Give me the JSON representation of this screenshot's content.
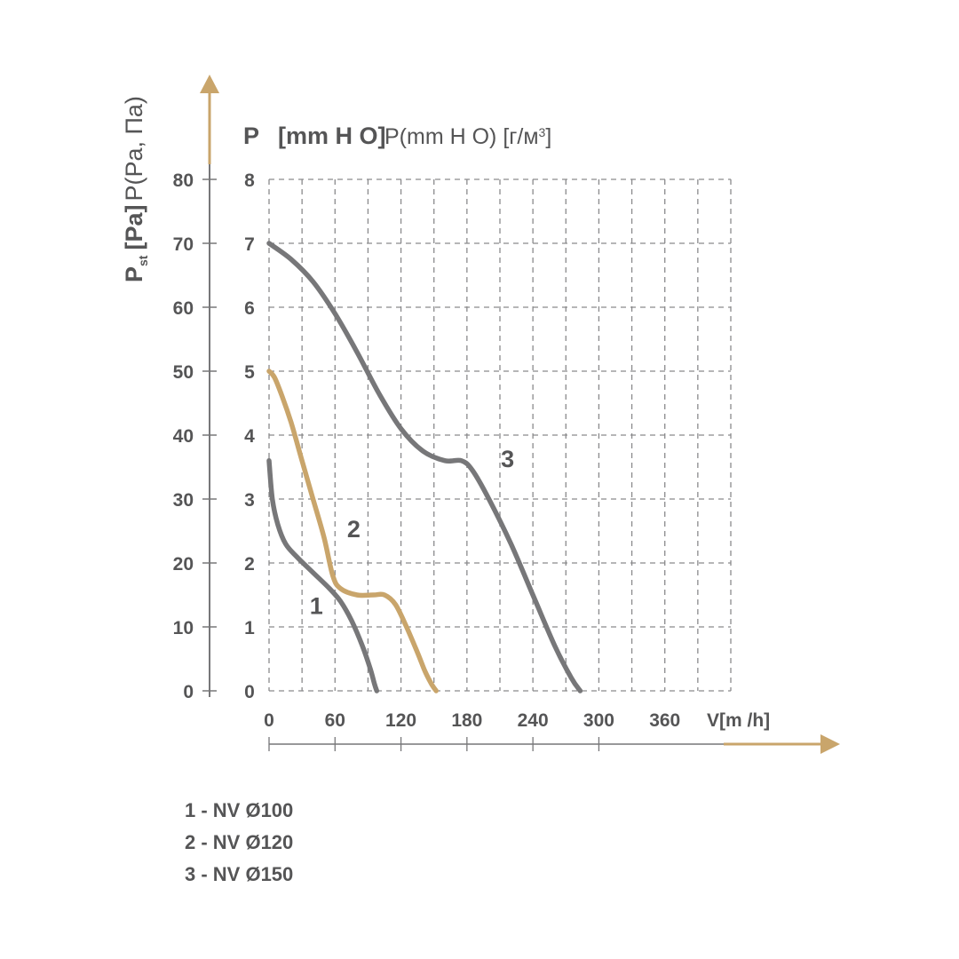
{
  "colors": {
    "accent": "#c9a56b",
    "ink": "#777779",
    "text": "#555556",
    "grid": "#8a8a8c"
  },
  "header": {
    "p_letter": "P",
    "bold_unit": "[mm H O]",
    "light_unit": "P(mm H O) [г/м",
    "light_sup": "3",
    "light_close": "]"
  },
  "y_axis_label": {
    "p": "P",
    "st": "st",
    "bold": "[Pa]",
    "light": "P(Pa, Па)"
  },
  "chart_data": {
    "type": "line",
    "xlabel": "V[m /h]",
    "x_ticks": [
      0,
      60,
      120,
      180,
      240,
      300,
      360
    ],
    "xlim": [
      0,
      420
    ],
    "y_ticks_pa": [
      0,
      10,
      20,
      30,
      40,
      50,
      60,
      70,
      80
    ],
    "y_ticks_mm": [
      0,
      1,
      2,
      3,
      4,
      5,
      6,
      7,
      8
    ],
    "ylim_pa": [
      0,
      80
    ],
    "grid": true,
    "series": [
      {
        "name": "1",
        "color": "#777779",
        "x": [
          0,
          3,
          8,
          15,
          25,
          40,
          55,
          65,
          75,
          85,
          92,
          96,
          98
        ],
        "y": [
          36,
          30,
          26,
          23,
          21,
          18.5,
          16,
          14,
          11,
          7,
          3.5,
          1,
          0
        ]
      },
      {
        "name": "2",
        "color": "#c9a56b",
        "x": [
          0,
          5,
          12,
          20,
          30,
          40,
          50,
          58,
          65,
          80,
          95,
          105,
          115,
          125,
          135,
          142,
          148,
          152
        ],
        "y": [
          50,
          49,
          46,
          42,
          36,
          30,
          24,
          18,
          16,
          15,
          15,
          15,
          13.5,
          10,
          6,
          3,
          1,
          0
        ]
      },
      {
        "name": "3",
        "color": "#777779",
        "x": [
          0,
          20,
          40,
          60,
          80,
          100,
          120,
          140,
          160,
          175,
          185,
          200,
          220,
          240,
          260,
          275,
          283
        ],
        "y": [
          70,
          67.5,
          64,
          59,
          53,
          46.5,
          41,
          37.5,
          36,
          36,
          34.5,
          30,
          23,
          15,
          7,
          2,
          0
        ]
      }
    ],
    "curve_labels": [
      {
        "label": "1",
        "x": 43,
        "y": 12
      },
      {
        "label": "2",
        "x": 77,
        "y": 24
      },
      {
        "label": "3",
        "x": 217,
        "y": 35
      }
    ]
  },
  "legend": [
    "1 - NV Ø100",
    "2 - NV Ø120",
    "3 - NV Ø150"
  ]
}
